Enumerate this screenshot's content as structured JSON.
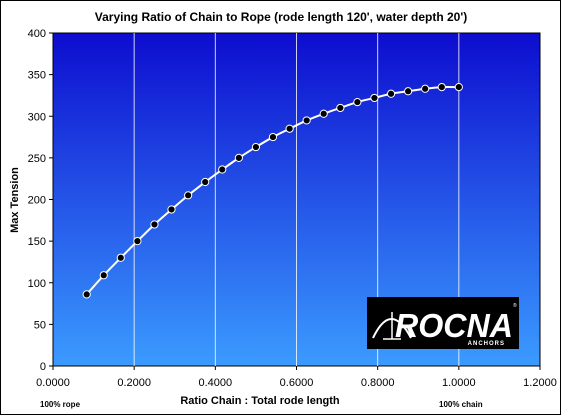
{
  "chart_data": {
    "type": "line",
    "title": "Varying Ratio of Chain to Rope (rode length 120', water depth 20')",
    "xlabel": "Ratio Chain : Total rode length",
    "ylabel": "Max Tension",
    "xlim": [
      0,
      1.2
    ],
    "ylim": [
      0,
      400
    ],
    "x_ticks": [
      "0.0000",
      "0.2000",
      "0.4000",
      "0.6000",
      "0.8000",
      "1.0000",
      "1.2000"
    ],
    "y_ticks": [
      "0",
      "50",
      "100",
      "150",
      "200",
      "250",
      "300",
      "350",
      "400"
    ],
    "grid": "vertical",
    "markers": "filled circle",
    "series": [
      {
        "x": [
          0.083,
          0.125,
          0.167,
          0.208,
          0.25,
          0.292,
          0.333,
          0.375,
          0.417,
          0.458,
          0.5,
          0.542,
          0.583,
          0.625,
          0.667,
          0.708,
          0.75,
          0.792,
          0.833,
          0.875,
          0.917,
          0.958,
          1.0
        ],
        "y": [
          86,
          109,
          130,
          150,
          170,
          188,
          205,
          221,
          236,
          250,
          263,
          275,
          285,
          295,
          303,
          310,
          317,
          322,
          327,
          330,
          333,
          335,
          335
        ]
      }
    ],
    "colors": {
      "plot_gradient_top": "#0d0dcf",
      "plot_gradient_bottom": "#3b9bff",
      "line": "#ffffff",
      "marker": "#000000"
    }
  },
  "annotations": {
    "left": "100% rope",
    "right": "100% chain"
  },
  "logo": {
    "name": "ROCNA",
    "subtitle": "ANCHORS"
  }
}
